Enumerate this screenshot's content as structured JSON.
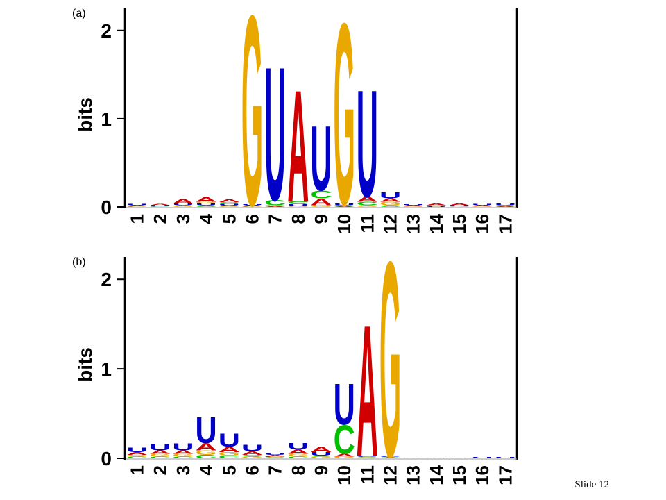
{
  "chart_data": [
    {
      "type": "logo",
      "label": "(a)",
      "ylabel": "bits",
      "categories": [
        "1",
        "2",
        "3",
        "4",
        "5",
        "6",
        "7",
        "8",
        "9",
        "10",
        "11",
        "12",
        "13",
        "14",
        "15",
        "16",
        "17"
      ],
      "ylim": [
        0,
        2.25
      ],
      "yticks": [
        0,
        1,
        2
      ],
      "colors": {
        "A": "#d00000",
        "C": "#00c000",
        "G": "#e8a800",
        "U": "#0000c8"
      },
      "stacks": [
        [
          {
            "letter": "C",
            "value": 0.01
          },
          {
            "letter": "A",
            "value": 0.01
          },
          {
            "letter": "U",
            "value": 0.015
          }
        ],
        [
          {
            "letter": "C",
            "value": 0.01
          },
          {
            "letter": "U",
            "value": 0.01
          },
          {
            "letter": "A",
            "value": 0.015
          }
        ],
        [
          {
            "letter": "G",
            "value": 0.02
          },
          {
            "letter": "U",
            "value": 0.02
          },
          {
            "letter": "A",
            "value": 0.05
          }
        ],
        [
          {
            "letter": "C",
            "value": 0.02
          },
          {
            "letter": "U",
            "value": 0.02
          },
          {
            "letter": "G",
            "value": 0.02
          },
          {
            "letter": "A",
            "value": 0.05
          }
        ],
        [
          {
            "letter": "G",
            "value": 0.015
          },
          {
            "letter": "U",
            "value": 0.02
          },
          {
            "letter": "C",
            "value": 0.02
          },
          {
            "letter": "A",
            "value": 0.03
          }
        ],
        [
          {
            "letter": "C",
            "value": 0.01
          },
          {
            "letter": "A",
            "value": 0.01
          },
          {
            "letter": "U",
            "value": 0.01
          },
          {
            "letter": "G",
            "value": 2.2
          }
        ],
        [
          {
            "letter": "A",
            "value": 0.01
          },
          {
            "letter": "G",
            "value": 0.01
          },
          {
            "letter": "C",
            "value": 0.06
          },
          {
            "letter": "U",
            "value": 1.55
          }
        ],
        [
          {
            "letter": "G",
            "value": 0.01
          },
          {
            "letter": "U",
            "value": 0.02
          },
          {
            "letter": "C",
            "value": 0.03
          },
          {
            "letter": "A",
            "value": 1.3
          }
        ],
        [
          {
            "letter": "G",
            "value": 0.02
          },
          {
            "letter": "A",
            "value": 0.08
          },
          {
            "letter": "C",
            "value": 0.09
          },
          {
            "letter": "U",
            "value": 0.75
          }
        ],
        [
          {
            "letter": "A",
            "value": 0.01
          },
          {
            "letter": "C",
            "value": 0.01
          },
          {
            "letter": "U",
            "value": 0.02
          },
          {
            "letter": "G",
            "value": 2.1
          }
        ],
        [
          {
            "letter": "G",
            "value": 0.02
          },
          {
            "letter": "C",
            "value": 0.04
          },
          {
            "letter": "A",
            "value": 0.06
          },
          {
            "letter": "U",
            "value": 1.24
          }
        ],
        [
          {
            "letter": "C",
            "value": 0.02
          },
          {
            "letter": "G",
            "value": 0.04
          },
          {
            "letter": "A",
            "value": 0.04
          },
          {
            "letter": "U",
            "value": 0.07
          }
        ],
        [
          {
            "letter": "G",
            "value": 0.01
          },
          {
            "letter": "A",
            "value": 0.01
          },
          {
            "letter": "U",
            "value": 0.01
          }
        ],
        [
          {
            "letter": "U",
            "value": 0.01
          },
          {
            "letter": "G",
            "value": 0.01
          },
          {
            "letter": "A",
            "value": 0.02
          }
        ],
        [
          {
            "letter": "G",
            "value": 0.01
          },
          {
            "letter": "U",
            "value": 0.01
          },
          {
            "letter": "A",
            "value": 0.02
          }
        ],
        [
          {
            "letter": "G",
            "value": 0.01
          },
          {
            "letter": "A",
            "value": 0.01
          },
          {
            "letter": "U",
            "value": 0.015
          }
        ],
        [
          {
            "letter": "A",
            "value": 0.01
          },
          {
            "letter": "G",
            "value": 0.01
          },
          {
            "letter": "U",
            "value": 0.02
          }
        ]
      ]
    },
    {
      "type": "logo",
      "label": "(b)",
      "ylabel": "bits",
      "categories": [
        "1",
        "2",
        "3",
        "4",
        "5",
        "6",
        "7",
        "8",
        "9",
        "10",
        "11",
        "12",
        "13",
        "14",
        "15",
        "16",
        "17"
      ],
      "ylim": [
        0,
        2.25
      ],
      "yticks": [
        0,
        1,
        2
      ],
      "colors": {
        "A": "#d00000",
        "C": "#00c000",
        "G": "#e8a800",
        "U": "#0000c8"
      },
      "stacks": [
        [
          {
            "letter": "C",
            "value": 0.02
          },
          {
            "letter": "G",
            "value": 0.02
          },
          {
            "letter": "A",
            "value": 0.03
          },
          {
            "letter": "U",
            "value": 0.05
          }
        ],
        [
          {
            "letter": "C",
            "value": 0.02
          },
          {
            "letter": "G",
            "value": 0.03
          },
          {
            "letter": "A",
            "value": 0.04
          },
          {
            "letter": "U",
            "value": 0.07
          }
        ],
        [
          {
            "letter": "C",
            "value": 0.02
          },
          {
            "letter": "G",
            "value": 0.03
          },
          {
            "letter": "A",
            "value": 0.04
          },
          {
            "letter": "U",
            "value": 0.08
          }
        ],
        [
          {
            "letter": "C",
            "value": 0.04
          },
          {
            "letter": "G",
            "value": 0.05
          },
          {
            "letter": "A",
            "value": 0.08
          },
          {
            "letter": "U",
            "value": 0.3
          }
        ],
        [
          {
            "letter": "C",
            "value": 0.03
          },
          {
            "letter": "G",
            "value": 0.04
          },
          {
            "letter": "A",
            "value": 0.06
          },
          {
            "letter": "U",
            "value": 0.15
          }
        ],
        [
          {
            "letter": "G",
            "value": 0.02
          },
          {
            "letter": "C",
            "value": 0.02
          },
          {
            "letter": "A",
            "value": 0.04
          },
          {
            "letter": "U",
            "value": 0.07
          }
        ],
        [
          {
            "letter": "G",
            "value": 0.01
          },
          {
            "letter": "C",
            "value": 0.01
          },
          {
            "letter": "A",
            "value": 0.02
          },
          {
            "letter": "U",
            "value": 0.02
          }
        ],
        [
          {
            "letter": "C",
            "value": 0.02
          },
          {
            "letter": "G",
            "value": 0.03
          },
          {
            "letter": "A",
            "value": 0.05
          },
          {
            "letter": "U",
            "value": 0.07
          }
        ],
        [
          {
            "letter": "G",
            "value": 0.02
          },
          {
            "letter": "C",
            "value": 0.01
          },
          {
            "letter": "U",
            "value": 0.04
          },
          {
            "letter": "A",
            "value": 0.06
          }
        ],
        [
          {
            "letter": "G",
            "value": 0.02
          },
          {
            "letter": "A",
            "value": 0.03
          },
          {
            "letter": "C",
            "value": 0.33
          },
          {
            "letter": "U",
            "value": 0.47
          }
        ],
        [
          {
            "letter": "G",
            "value": 0.01
          },
          {
            "letter": "C",
            "value": 0.01
          },
          {
            "letter": "U",
            "value": 0.01
          },
          {
            "letter": "A",
            "value": 1.5
          }
        ],
        [
          {
            "letter": "A",
            "value": 0.01
          },
          {
            "letter": "C",
            "value": 0.01
          },
          {
            "letter": "U",
            "value": 0.01
          },
          {
            "letter": "G",
            "value": 2.23
          }
        ],
        [
          {
            "letter": "A",
            "value": 0.005
          },
          {
            "letter": "G",
            "value": 0.005
          }
        ],
        [
          {
            "letter": "A",
            "value": 0.005
          },
          {
            "letter": "U",
            "value": 0.005
          }
        ],
        [
          {
            "letter": "G",
            "value": 0.005
          },
          {
            "letter": "U",
            "value": 0.005
          }
        ],
        [
          {
            "letter": "A",
            "value": 0.005
          },
          {
            "letter": "U",
            "value": 0.008
          }
        ],
        [
          {
            "letter": "A",
            "value": 0.005
          },
          {
            "letter": "U",
            "value": 0.01
          }
        ]
      ]
    }
  ],
  "footer": "Slide 12"
}
